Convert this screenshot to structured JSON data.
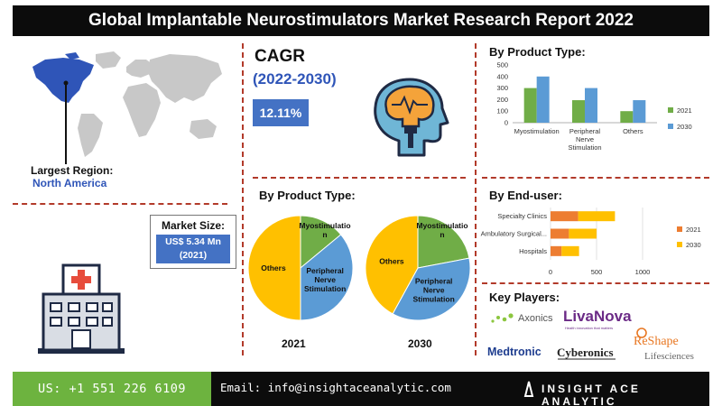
{
  "title": "Global Implantable Neurostimulators Market Research Report 2022",
  "region": {
    "label": "Largest Region:",
    "value": "North America"
  },
  "market_size": {
    "label": "Market Size:",
    "value": "US$ 5.34 Mn",
    "year": "(2021)"
  },
  "cagr": {
    "label": "CAGR",
    "period": "(2022-2030)",
    "value": "12.11%"
  },
  "product_pies_title": "By Product Type:",
  "product_bars_title": "By Product Type:",
  "enduser_title": "By End-user:",
  "key_players_title": "Key Players:",
  "footer": {
    "phone": "US: +1 551 226 6109",
    "email": "Email: info@insightaceanalytic.com",
    "brand": "INSIGHT ACE ANALYTIC"
  },
  "players": [
    "Axonics",
    "LivaNova",
    "Health innovation that matters",
    "Medtronic",
    "Cyberonics",
    "ReShape",
    "Lifesciences"
  ],
  "icons": [
    "world-map-icon",
    "hospital-icon",
    "brain-head-icon"
  ],
  "colors": {
    "series_2021": "#70ad47",
    "series_2030": "#5b9bd5",
    "enduser_2021": "#ed7d31",
    "enduser_2030": "#ffc000",
    "box": "#4472c4"
  },
  "chart_data": [
    {
      "type": "bar",
      "title": "By Product Type:",
      "categories": [
        "Myostimulation",
        "Peripheral Nerve Stimulation",
        "Others"
      ],
      "category_lines": [
        [
          "Myostimulation"
        ],
        [
          "Peripheral",
          "Nerve",
          "Stimulation"
        ],
        [
          "Others"
        ]
      ],
      "series": [
        {
          "name": "2021",
          "values": [
            300,
            195,
            100
          ],
          "color": "#70ad47"
        },
        {
          "name": "2030",
          "values": [
            400,
            300,
            195
          ],
          "color": "#5b9bd5"
        }
      ],
      "yticks": [
        0,
        100,
        200,
        300,
        400,
        500
      ],
      "ylim": [
        0,
        500
      ],
      "legend": "right"
    },
    {
      "type": "bar",
      "orientation": "horizontal",
      "stacked": true,
      "title": "By End-user:",
      "categories": [
        "Specialty Clinics",
        "Ambulatory Surgical...",
        "Hospitals"
      ],
      "series": [
        {
          "name": "2021",
          "values": [
            300,
            200,
            120
          ],
          "color": "#ed7d31"
        },
        {
          "name": "2030",
          "values": [
            400,
            300,
            190
          ],
          "color": "#ffc000"
        }
      ],
      "xticks": [
        0,
        500,
        1000
      ],
      "xlim": [
        0,
        1000
      ],
      "grid": true,
      "legend": "right"
    },
    {
      "type": "pie",
      "label": "2021",
      "slices": [
        {
          "name": "Myostimulation",
          "value": 14,
          "color": "#70ad47"
        },
        {
          "name": "Peripheral Nerve Stimulation",
          "value": 36,
          "color": "#5b9bd5"
        },
        {
          "name": "Others",
          "value": 50,
          "color": "#ffc000"
        }
      ]
    },
    {
      "type": "pie",
      "label": "2030",
      "slices": [
        {
          "name": "Myostimulation",
          "value": 22,
          "color": "#70ad47"
        },
        {
          "name": "Peripheral Nerve Stimulation",
          "value": 36,
          "color": "#5b9bd5"
        },
        {
          "name": "Others",
          "value": 42,
          "color": "#ffc000"
        }
      ]
    }
  ]
}
